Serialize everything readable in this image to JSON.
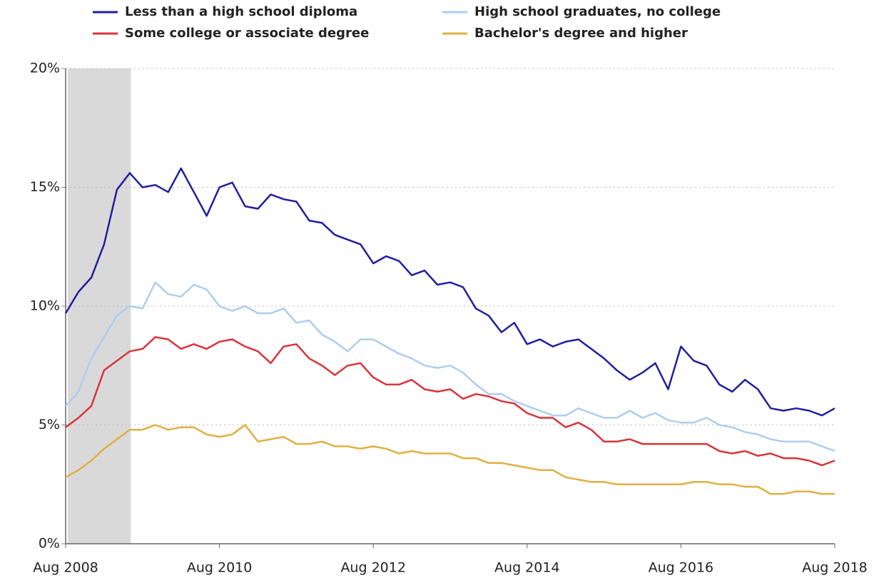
{
  "chart_data": {
    "type": "line",
    "x": [
      2008.583,
      2008.75,
      2008.917,
      2009.083,
      2009.25,
      2009.417,
      2009.583,
      2009.75,
      2009.917,
      2010.083,
      2010.25,
      2010.417,
      2010.583,
      2010.75,
      2010.917,
      2011.083,
      2011.25,
      2011.417,
      2011.583,
      2011.75,
      2011.917,
      2012.083,
      2012.25,
      2012.417,
      2012.583,
      2012.75,
      2012.917,
      2013.083,
      2013.25,
      2013.417,
      2013.583,
      2013.75,
      2013.917,
      2014.083,
      2014.25,
      2014.417,
      2014.583,
      2014.75,
      2014.917,
      2015.083,
      2015.25,
      2015.417,
      2015.583,
      2015.75,
      2015.917,
      2016.083,
      2016.25,
      2016.417,
      2016.583,
      2016.75,
      2016.917,
      2017.083,
      2017.25,
      2017.417,
      2017.583,
      2017.75,
      2017.917,
      2018.083,
      2018.25,
      2018.417,
      2018.583
    ],
    "series": [
      {
        "name": "Less than a high school diploma",
        "color": "#1f1f9e",
        "values": [
          9.7,
          10.6,
          11.2,
          12.6,
          14.9,
          15.6,
          15.0,
          15.1,
          14.8,
          15.8,
          14.8,
          13.8,
          15.0,
          15.2,
          14.2,
          14.1,
          14.7,
          14.5,
          14.4,
          13.6,
          13.5,
          13.0,
          12.8,
          12.6,
          11.8,
          12.1,
          11.9,
          11.3,
          11.5,
          10.9,
          11.0,
          10.8,
          9.9,
          9.6,
          8.9,
          9.3,
          8.4,
          8.6,
          8.3,
          8.5,
          8.6,
          8.2,
          7.8,
          7.3,
          6.9,
          7.2,
          7.6,
          6.5,
          8.3,
          7.7,
          7.5,
          6.7,
          6.4,
          6.9,
          6.5,
          5.7,
          5.6,
          5.7,
          5.6,
          5.4,
          5.7
        ]
      },
      {
        "name": "High school graduates, no college",
        "color": "#aecdf0",
        "values": [
          5.8,
          6.4,
          7.8,
          8.7,
          9.6,
          10.0,
          9.9,
          11.0,
          10.5,
          10.4,
          10.9,
          10.7,
          10.0,
          9.8,
          10.0,
          9.7,
          9.7,
          9.9,
          9.3,
          9.4,
          8.8,
          8.5,
          8.1,
          8.6,
          8.6,
          8.3,
          8.0,
          7.8,
          7.5,
          7.4,
          7.5,
          7.2,
          6.7,
          6.3,
          6.3,
          6.0,
          5.8,
          5.6,
          5.4,
          5.4,
          5.7,
          5.5,
          5.3,
          5.3,
          5.6,
          5.3,
          5.5,
          5.2,
          5.1,
          5.1,
          5.3,
          5.0,
          4.9,
          4.7,
          4.6,
          4.4,
          4.3,
          4.3,
          4.3,
          4.1,
          3.9
        ]
      },
      {
        "name": "Some college or associate degree",
        "color": "#d9343a",
        "values": [
          4.9,
          5.3,
          5.8,
          7.3,
          7.7,
          8.1,
          8.2,
          8.7,
          8.6,
          8.2,
          8.4,
          8.2,
          8.5,
          8.6,
          8.3,
          8.1,
          7.6,
          8.3,
          8.4,
          7.8,
          7.5,
          7.1,
          7.5,
          7.6,
          7.0,
          6.7,
          6.7,
          6.9,
          6.5,
          6.4,
          6.5,
          6.1,
          6.3,
          6.2,
          6.0,
          5.9,
          5.5,
          5.3,
          5.3,
          4.9,
          5.1,
          4.8,
          4.3,
          4.3,
          4.4,
          4.2,
          4.2,
          4.2,
          4.2,
          4.2,
          4.2,
          3.9,
          3.8,
          3.9,
          3.7,
          3.8,
          3.6,
          3.6,
          3.5,
          3.3,
          3.5
        ]
      },
      {
        "name": "Bachelor's degree and higher",
        "color": "#e0b040",
        "values": [
          2.8,
          3.1,
          3.5,
          4.0,
          4.4,
          4.8,
          4.8,
          5.0,
          4.8,
          4.9,
          4.9,
          4.6,
          4.5,
          4.6,
          5.0,
          4.3,
          4.4,
          4.5,
          4.2,
          4.2,
          4.3,
          4.1,
          4.1,
          4.0,
          4.1,
          4.0,
          3.8,
          3.9,
          3.8,
          3.8,
          3.8,
          3.6,
          3.6,
          3.4,
          3.4,
          3.3,
          3.2,
          3.1,
          3.1,
          2.8,
          2.7,
          2.6,
          2.6,
          2.5,
          2.5,
          2.5,
          2.5,
          2.5,
          2.5,
          2.6,
          2.6,
          2.5,
          2.5,
          2.4,
          2.4,
          2.1,
          2.1,
          2.2,
          2.2,
          2.1,
          2.1
        ]
      }
    ],
    "xlim": [
      2008.583,
      2018.583
    ],
    "xticks": [
      {
        "value": 2008.583,
        "label": "Aug 2008"
      },
      {
        "value": 2010.583,
        "label": "Aug 2010"
      },
      {
        "value": 2012.583,
        "label": "Aug 2012"
      },
      {
        "value": 2014.583,
        "label": "Aug 2014"
      },
      {
        "value": 2016.583,
        "label": "Aug 2016"
      },
      {
        "value": 2018.583,
        "label": "Aug 2018"
      }
    ],
    "ylim": [
      0,
      20
    ],
    "yticks": [
      {
        "value": 0,
        "label": "0%"
      },
      {
        "value": 5,
        "label": "5%"
      },
      {
        "value": 10,
        "label": "10%"
      },
      {
        "value": 15,
        "label": "15%"
      },
      {
        "value": 20,
        "label": "20%"
      }
    ],
    "shaded_x_range": [
      2008.583,
      2009.43
    ],
    "grid": true,
    "legend": "top"
  }
}
